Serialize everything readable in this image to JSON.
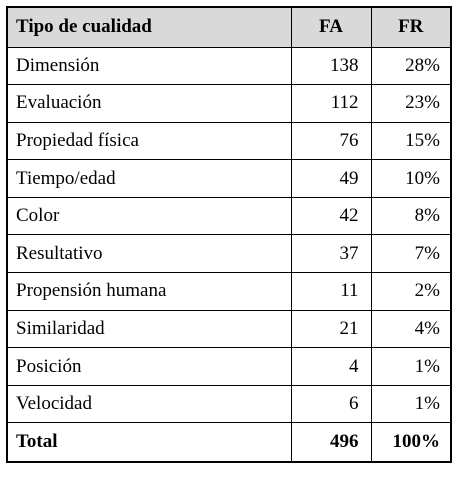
{
  "table": {
    "headers": {
      "type": "Tipo de cualidad",
      "fa": "FA",
      "fr": "FR"
    },
    "rows": [
      {
        "type": "Dimensión",
        "fa": "138",
        "fr": "28%"
      },
      {
        "type": "Evaluación",
        "fa": "112",
        "fr": "23%"
      },
      {
        "type": "Propiedad física",
        "fa": "76",
        "fr": "15%"
      },
      {
        "type": "Tiempo/edad",
        "fa": "49",
        "fr": "10%"
      },
      {
        "type": "Color",
        "fa": "42",
        "fr": "8%"
      },
      {
        "type": "Resultativo",
        "fa": "37",
        "fr": "7%"
      },
      {
        "type": "Propensión humana",
        "fa": "11",
        "fr": "2%"
      },
      {
        "type": "Similaridad",
        "fa": "21",
        "fr": "4%"
      },
      {
        "type": "Posición",
        "fa": "4",
        "fr": "1%"
      },
      {
        "type": "Velocidad",
        "fa": "6",
        "fr": "1%"
      }
    ],
    "total": {
      "type": "Total",
      "fa": "496",
      "fr": "100%"
    },
    "header_bg": "#d9d9d9"
  }
}
